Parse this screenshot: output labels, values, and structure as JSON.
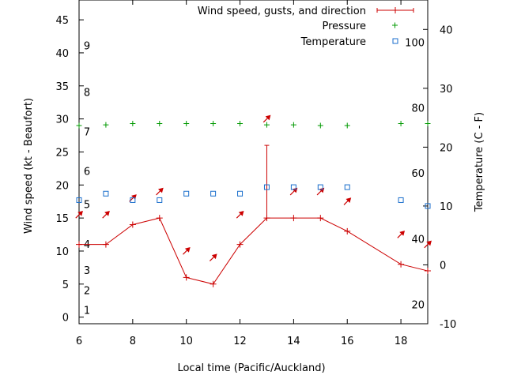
{
  "chart_data": {
    "type": "line",
    "xlabel": "Local time (Pacific/Auckland)",
    "ylabel": "Wind speed (kt - Beaufort)",
    "y2label": "Temperature (C - F)",
    "xlim": [
      6,
      19
    ],
    "ylim": [
      -1,
      48
    ],
    "y2lim": [
      -10,
      45
    ],
    "x_ticks": [
      6,
      8,
      10,
      12,
      14,
      16,
      18
    ],
    "y_ticks": [
      0,
      5,
      10,
      15,
      20,
      25,
      30,
      35,
      40,
      45
    ],
    "y2_ticks": [
      -10,
      0,
      10,
      20,
      30,
      40
    ],
    "beaufort_labels": [
      {
        "label": "1",
        "y": 1.1
      },
      {
        "label": "2",
        "y": 4.1
      },
      {
        "label": "3",
        "y": 7.1
      },
      {
        "label": "4",
        "y": 11.1
      },
      {
        "label": "5",
        "y": 17.1
      },
      {
        "label": "6",
        "y": 22.1
      },
      {
        "label": "7",
        "y": 28.1
      },
      {
        "label": "8",
        "y": 34.1
      },
      {
        "label": "9",
        "y": 41.1
      }
    ],
    "fahrenheit_labels": [
      {
        "label": "20",
        "y2": -6.7
      },
      {
        "label": "40",
        "y2": 4.4
      },
      {
        "label": "60",
        "y2": 15.6
      },
      {
        "label": "80",
        "y2": 26.7
      },
      {
        "label": "100",
        "y2": 37.8
      }
    ],
    "legend_position": "top-right",
    "series": [
      {
        "name": "Wind speed, gusts, and direction",
        "color": "#cc0000",
        "x": [
          6,
          7,
          8,
          9,
          10,
          11,
          12,
          13,
          14,
          15,
          16,
          18,
          19
        ],
        "values": [
          11,
          11,
          14,
          15,
          6,
          5,
          11,
          15,
          15,
          15,
          13,
          8,
          7
        ],
        "gusts": [
          {
            "x": 13,
            "low": 15,
            "high": 26
          }
        ],
        "direction": [
          {
            "x": 6,
            "y": 15.5
          },
          {
            "x": 7,
            "y": 15.5
          },
          {
            "x": 8,
            "y": 18
          },
          {
            "x": 9,
            "y": 19
          },
          {
            "x": 10,
            "y": 10
          },
          {
            "x": 11,
            "y": 9
          },
          {
            "x": 12,
            "y": 15.5
          },
          {
            "x": 13,
            "y": 30
          },
          {
            "x": 14,
            "y": 19
          },
          {
            "x": 15,
            "y": 19
          },
          {
            "x": 16,
            "y": 17.5
          },
          {
            "x": 18,
            "y": 12.5
          },
          {
            "x": 19,
            "y": 11
          }
        ]
      },
      {
        "name": "Pressure",
        "color": "#009900",
        "x": [
          6,
          7,
          8,
          9,
          10,
          11,
          12,
          13,
          14,
          15,
          16,
          18,
          19
        ],
        "values": [
          29,
          29.1,
          29.3,
          29.3,
          29.3,
          29.3,
          29.3,
          29.1,
          29.1,
          29,
          29,
          29.3,
          29.3
        ]
      },
      {
        "name": "Temperature",
        "color": "#1a6ecc",
        "x": [
          6,
          7,
          8,
          9,
          10,
          11,
          12,
          13,
          14,
          15,
          16,
          18,
          19
        ],
        "values": [
          11,
          12.1,
          11,
          11,
          12.1,
          12.1,
          12.1,
          13.2,
          13.2,
          13.2,
          13.2,
          11,
          10
        ]
      }
    ]
  }
}
